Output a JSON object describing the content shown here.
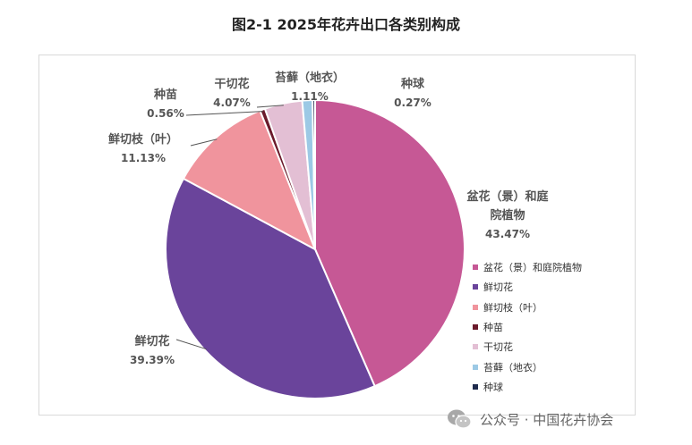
{
  "chart_data": {
    "type": "pie",
    "title": "图2-1  2025年花卉出口各类别构成",
    "slices": [
      {
        "name": "盆花（景）和庭院植物",
        "value": 43.47,
        "label_name_lines": [
          "盆花（景）和庭",
          "院植物"
        ],
        "label_pct": "43.47%",
        "color": "#c65895"
      },
      {
        "name": "鲜切花",
        "value": 39.39,
        "label_name_lines": [
          "鲜切花"
        ],
        "label_pct": "39.39%",
        "color": "#6a449b"
      },
      {
        "name": "鲜切枝（叶）",
        "value": 11.13,
        "label_name_lines": [
          "鲜切枝（叶）"
        ],
        "label_pct": "11.13%",
        "color": "#f0949d"
      },
      {
        "name": "种苗",
        "value": 0.56,
        "label_name_lines": [
          "种苗"
        ],
        "label_pct": "0.56%",
        "color": "#6b1a2b"
      },
      {
        "name": "干切花",
        "value": 4.07,
        "label_name_lines": [
          "干切花"
        ],
        "label_pct": "4.07%",
        "color": "#e3bfd4"
      },
      {
        "name": "苔藓（地衣）",
        "value": 1.11,
        "label_name_lines": [
          "苔藓（地衣）"
        ],
        "label_pct": "1.11%",
        "color": "#9cc9e5"
      },
      {
        "name": "种球",
        "value": 0.27,
        "label_name_lines": [
          "种球"
        ],
        "label_pct": "0.27%",
        "color": "#1f2b4d"
      }
    ]
  },
  "watermark": {
    "text": "公众号 · 中国花卉协会",
    "icon": "wechat-icon"
  }
}
